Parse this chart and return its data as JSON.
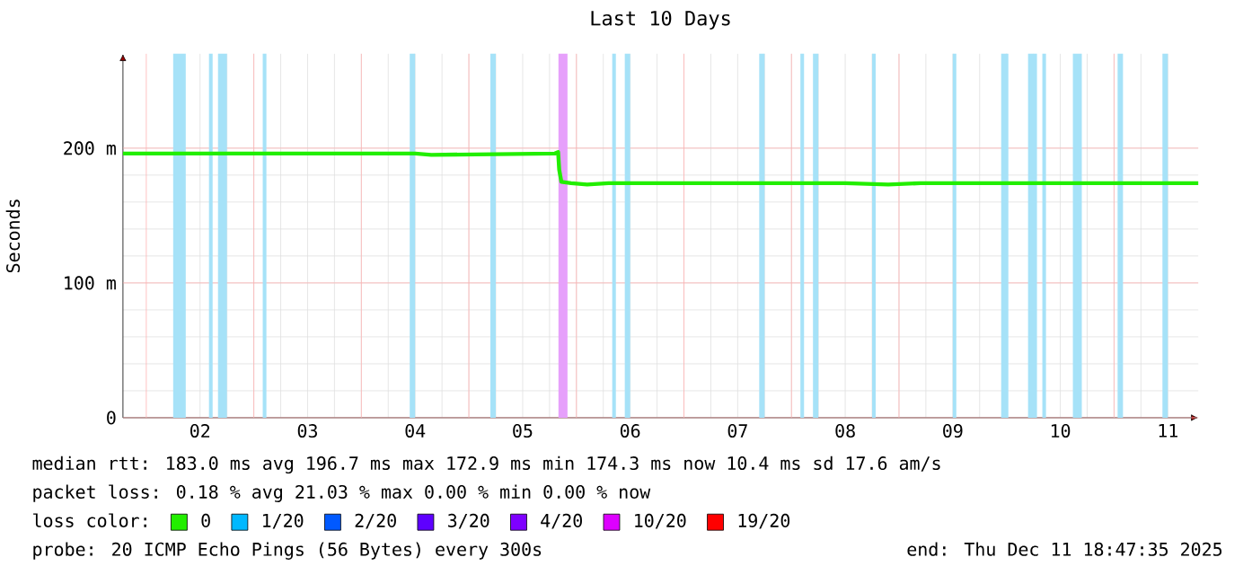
{
  "chart_data": {
    "type": "line",
    "title": "Last 10 Days",
    "ylabel": "Seconds",
    "legend_title": "loss color:",
    "xlim": [
      1.783,
      11.783
    ],
    "ylim": [
      0,
      270
    ],
    "xticks": [
      {
        "value": 2,
        "label": null
      },
      {
        "value": 2.5,
        "label": "02"
      },
      {
        "value": 3,
        "label": null
      },
      {
        "value": 3.5,
        "label": "03"
      },
      {
        "value": 4,
        "label": null
      },
      {
        "value": 4.5,
        "label": "04"
      },
      {
        "value": 5,
        "label": null
      },
      {
        "value": 5.5,
        "label": "05"
      },
      {
        "value": 6,
        "label": null
      },
      {
        "value": 6.5,
        "label": "06"
      },
      {
        "value": 7,
        "label": null
      },
      {
        "value": 7.5,
        "label": "07"
      },
      {
        "value": 8,
        "label": null
      },
      {
        "value": 8.5,
        "label": "08"
      },
      {
        "value": 9,
        "label": null
      },
      {
        "value": 9.5,
        "label": "09"
      },
      {
        "value": 10,
        "label": null
      },
      {
        "value": 10.5,
        "label": "10"
      },
      {
        "value": 11,
        "label": null
      },
      {
        "value": 11.5,
        "label": "11"
      }
    ],
    "yticks": [
      0,
      {
        "value": 100,
        "label": "100 m"
      },
      {
        "value": 200,
        "label": "200 m"
      }
    ],
    "grid": true,
    "legend": "bottom",
    "series": [
      {
        "name": "0",
        "color": "#22ee00",
        "x": [
          1.783,
          4.5,
          4.65,
          5.8,
          5.83,
          5.84,
          5.86,
          5.95,
          6.1,
          6.3,
          8.5,
          8.9,
          9.2,
          11.783
        ],
        "values": [
          196,
          196,
          195,
          196,
          197,
          184,
          175,
          174,
          173,
          174,
          174,
          173,
          174,
          174
        ]
      },
      {
        "name": "1/20",
        "color": "#00b8ff"
      },
      {
        "name": "2/20",
        "color": "#0059ff"
      },
      {
        "name": "3/20",
        "color": "#5e00ff"
      },
      {
        "name": "4/20",
        "color": "#7e00ff"
      },
      {
        "name": "10/20",
        "color": "#dd00ff"
      },
      {
        "name": "19/20",
        "color": "#ff0000"
      }
    ],
    "bands": [
      {
        "axis": "x",
        "from": 2.25,
        "to": 2.367,
        "color": "#a6e2f8"
      },
      {
        "axis": "x",
        "from": 2.583,
        "to": 2.617,
        "color": "#a6e2f8"
      },
      {
        "axis": "x",
        "from": 2.667,
        "to": 2.75,
        "color": "#a6e2f8"
      },
      {
        "axis": "x",
        "from": 3.083,
        "to": 3.117,
        "color": "#a6e2f8"
      },
      {
        "axis": "x",
        "from": 4.45,
        "to": 4.5,
        "color": "#a6e2f8"
      },
      {
        "axis": "x",
        "from": 5.2,
        "to": 5.25,
        "color": "#a6e2f8"
      },
      {
        "axis": "x",
        "from": 5.833,
        "to": 5.917,
        "color": "#e6a0fb"
      },
      {
        "axis": "x",
        "from": 6.333,
        "to": 6.367,
        "color": "#a6e2f8"
      },
      {
        "axis": "x",
        "from": 6.45,
        "to": 6.5,
        "color": "#a6e2f8"
      },
      {
        "axis": "x",
        "from": 7.7,
        "to": 7.75,
        "color": "#a6e2f8"
      },
      {
        "axis": "x",
        "from": 8.083,
        "to": 8.117,
        "color": "#a6e2f8"
      },
      {
        "axis": "x",
        "from": 8.2,
        "to": 8.25,
        "color": "#a6e2f8"
      },
      {
        "axis": "x",
        "from": 8.75,
        "to": 8.783,
        "color": "#a6e2f8"
      },
      {
        "axis": "x",
        "from": 9.5,
        "to": 9.533,
        "color": "#a6e2f8"
      },
      {
        "axis": "x",
        "from": 9.95,
        "to": 10.017,
        "color": "#a6e2f8"
      },
      {
        "axis": "x",
        "from": 10.2,
        "to": 10.283,
        "color": "#a6e2f8"
      },
      {
        "axis": "x",
        "from": 10.333,
        "to": 10.367,
        "color": "#a6e2f8"
      },
      {
        "axis": "x",
        "from": 10.617,
        "to": 10.7,
        "color": "#a6e2f8"
      },
      {
        "axis": "x",
        "from": 11.033,
        "to": 11.083,
        "color": "#a6e2f8"
      },
      {
        "axis": "x",
        "from": 11.45,
        "to": 11.5,
        "color": "#a6e2f8"
      }
    ],
    "annotations": [
      "median rtt: 183.0 ms avg 196.7 ms max 172.9 ms min 174.3 ms now 10.4 ms sd 17.6 am/s",
      "packet loss: 0.18 % avg 21.03 % max 0.00 % min 0.00 % now",
      "probe: 20 ICMP Echo Pings (56 Bytes) every 300s",
      "end: Thu Dec 11 18:47:35 2025"
    ]
  }
}
